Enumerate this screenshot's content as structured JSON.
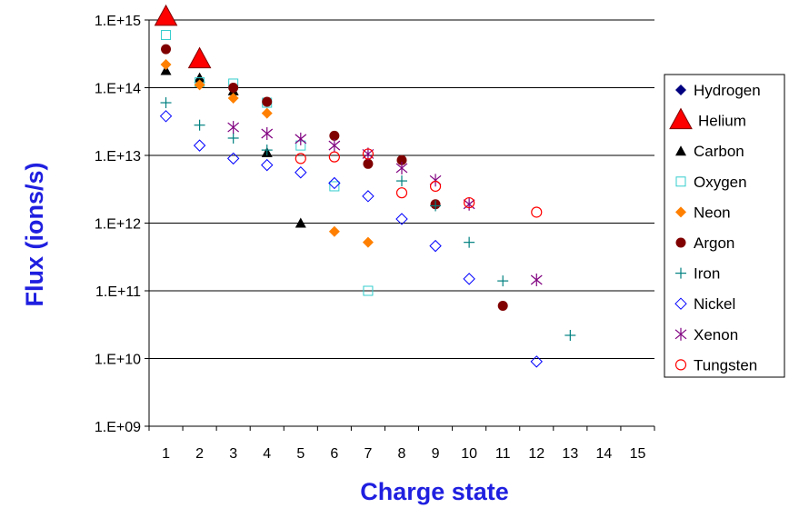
{
  "chart_data": {
    "type": "scatter",
    "xlabel": "Charge state",
    "ylabel": "Flux (ions/s)",
    "xlim": [
      0.5,
      15.5
    ],
    "ylim": [
      1000000000.0,
      1000000000000000.0
    ],
    "y_scale": "log",
    "x_ticks": [
      "1",
      "2",
      "3",
      "4",
      "5",
      "6",
      "7",
      "8",
      "9",
      "10",
      "11",
      "12",
      "13",
      "14",
      "15"
    ],
    "y_ticks": [
      {
        "value": 1000000000000000.0,
        "label": "1.E+15"
      },
      {
        "value": 100000000000000.0,
        "label": "1.E+14"
      },
      {
        "value": 10000000000000.0,
        "label": "1.E+13"
      },
      {
        "value": 1000000000000.0,
        "label": "1.E+12"
      },
      {
        "value": 100000000000.0,
        "label": "1.E+11"
      },
      {
        "value": 10000000000.0,
        "label": "1.E+10"
      },
      {
        "value": 1000000000.0,
        "label": "1.E+09"
      }
    ],
    "grid": "horizontal",
    "legend_position": "right",
    "series": [
      {
        "name": "Hydrogen",
        "marker": "diamond-filled",
        "color": "#000080",
        "points": []
      },
      {
        "name": "Helium",
        "marker": "triangle-large",
        "color": "#ff0000",
        "stroke": "#800000",
        "points": [
          [
            1,
            1100000000000000.0
          ],
          [
            2,
            260000000000000.0
          ]
        ]
      },
      {
        "name": "Carbon",
        "marker": "triangle-filled",
        "color": "#000000",
        "points": [
          [
            1,
            180000000000000.0
          ],
          [
            2,
            140000000000000.0
          ],
          [
            3,
            90000000000000.0
          ],
          [
            4,
            11000000000000.0
          ],
          [
            5,
            1000000000000.0
          ]
        ]
      },
      {
        "name": "Oxygen",
        "marker": "square-open",
        "color": "#33cccc",
        "points": [
          [
            1,
            600000000000000.0
          ],
          [
            2,
            120000000000000.0
          ],
          [
            3,
            115000000000000.0
          ],
          [
            4,
            60000000000000.0
          ],
          [
            5,
            14000000000000.0
          ],
          [
            6,
            3500000000000.0
          ],
          [
            7,
            100000000000.0
          ]
        ]
      },
      {
        "name": "Neon",
        "marker": "diamond-filled",
        "color": "#ff8000",
        "points": [
          [
            1,
            220000000000000.0
          ],
          [
            2,
            110000000000000.0
          ],
          [
            3,
            70000000000000.0
          ],
          [
            4,
            42000000000000.0
          ],
          [
            6,
            750000000000.0
          ],
          [
            7,
            520000000000.0
          ]
        ]
      },
      {
        "name": "Argon",
        "marker": "circle-filled",
        "color": "#800000",
        "points": [
          [
            1,
            370000000000000.0
          ],
          [
            3,
            100000000000000.0
          ],
          [
            4,
            62000000000000.0
          ],
          [
            6,
            19500000000000.0
          ],
          [
            7,
            7500000000000.0
          ],
          [
            8,
            8500000000000.0
          ],
          [
            9,
            1900000000000.0
          ],
          [
            11,
            60000000000.0
          ]
        ]
      },
      {
        "name": "Iron",
        "marker": "plus",
        "color": "#008080",
        "points": [
          [
            1,
            60000000000000.0
          ],
          [
            2,
            28000000000000.0
          ],
          [
            3,
            18000000000000.0
          ],
          [
            4,
            12000000000000.0
          ],
          [
            8,
            4200000000000.0
          ],
          [
            9,
            1800000000000.0
          ],
          [
            10,
            520000000000.0
          ],
          [
            11,
            140000000000.0
          ],
          [
            13,
            22000000000.0
          ]
        ]
      },
      {
        "name": "Nickel",
        "marker": "diamond-open",
        "color": "#0000ff",
        "points": [
          [
            1,
            38000000000000.0
          ],
          [
            2,
            14000000000000.0
          ],
          [
            3,
            9000000000000.0
          ],
          [
            4,
            7200000000000.0
          ],
          [
            5,
            5600000000000.0
          ],
          [
            6,
            3900000000000.0
          ],
          [
            7,
            2500000000000.0
          ],
          [
            8,
            1150000000000.0
          ],
          [
            9,
            460000000000.0
          ],
          [
            10,
            150000000000.0
          ],
          [
            12,
            9000000000.0
          ]
        ]
      },
      {
        "name": "Xenon",
        "marker": "asterisk",
        "color": "#800080",
        "points": [
          [
            3,
            26000000000000.0
          ],
          [
            4,
            21000000000000.0
          ],
          [
            5,
            17500000000000.0
          ],
          [
            6,
            14000000000000.0
          ],
          [
            7,
            10500000000000.0
          ],
          [
            8,
            6500000000000.0
          ],
          [
            9,
            4300000000000.0
          ],
          [
            10,
            1900000000000.0
          ],
          [
            12,
            145000000000.0
          ]
        ]
      },
      {
        "name": "Tungsten",
        "marker": "circle-open",
        "color": "#ff0000",
        "points": [
          [
            5,
            9000000000000.0
          ],
          [
            6,
            9500000000000.0
          ],
          [
            7,
            10500000000000.0
          ],
          [
            8,
            2800000000000.0
          ],
          [
            9,
            3500000000000.0
          ],
          [
            10,
            2000000000000.0
          ],
          [
            12,
            1450000000000.0
          ]
        ]
      }
    ]
  }
}
